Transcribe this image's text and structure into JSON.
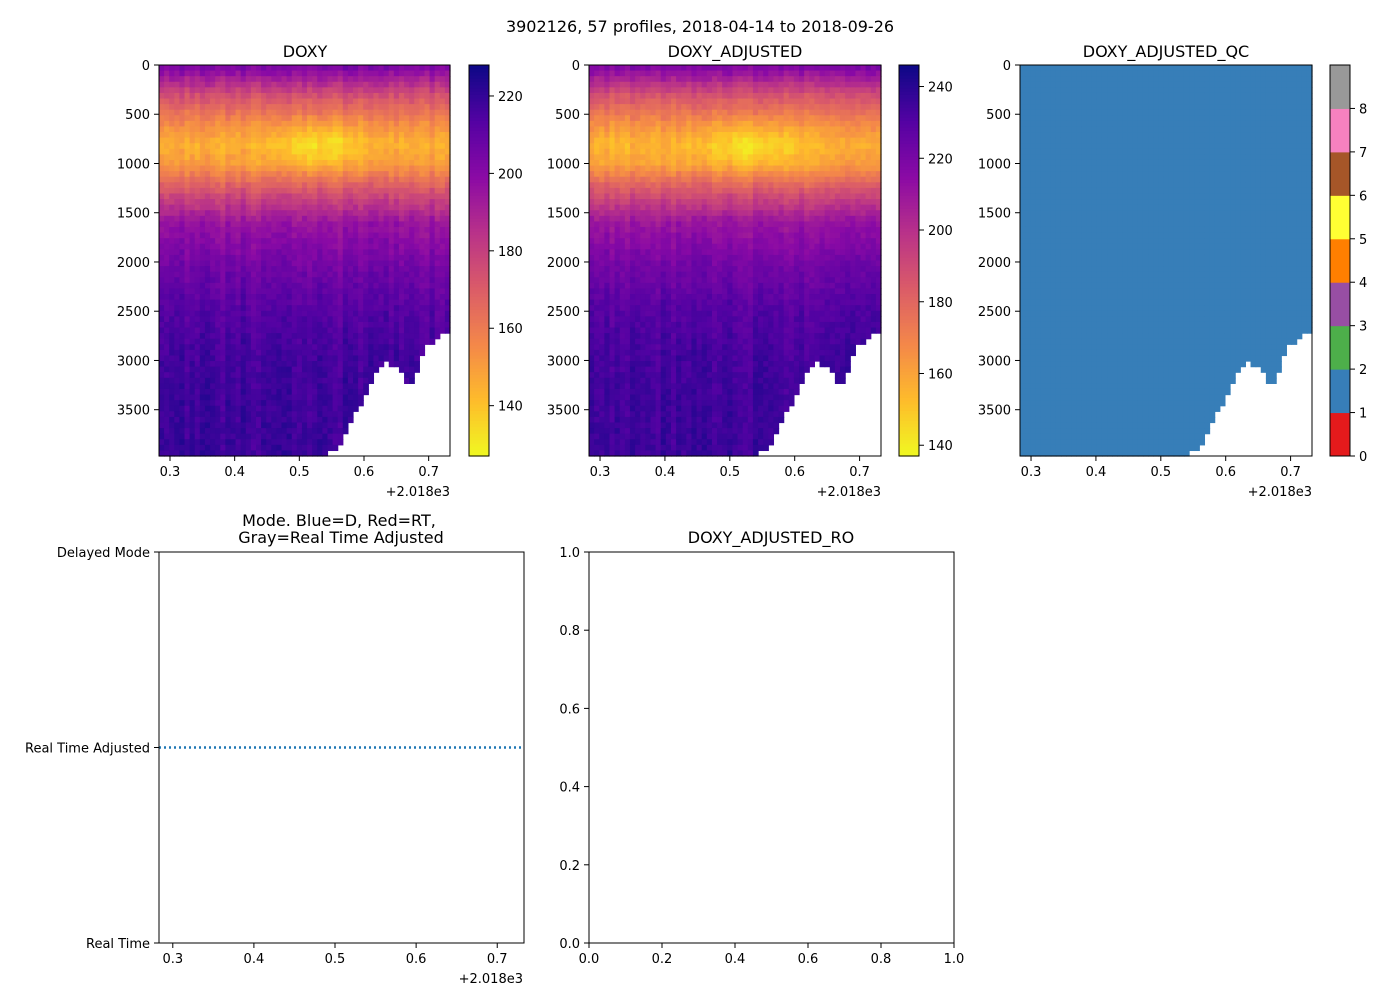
{
  "suptitle": "3902126, 57 profiles, 2018-04-14 to 2018-09-26",
  "chart_data": [
    {
      "type": "heatmap",
      "id": "doxy",
      "title": "DOXY",
      "x_range": [
        0.283,
        0.733
      ],
      "x_ticks": [
        0.3,
        0.4,
        0.5,
        0.6,
        0.7
      ],
      "x_tick_labels": [
        "0.3",
        "0.4",
        "0.5",
        "0.6",
        "0.7"
      ],
      "x_offset_label": "+2.018e3",
      "y_range": [
        0,
        3970
      ],
      "y_inverted": true,
      "y_ticks": [
        0,
        500,
        1000,
        1500,
        2000,
        2500,
        3000,
        3500
      ],
      "y_tick_labels": [
        "0",
        "500",
        "1000",
        "1500",
        "2000",
        "2500",
        "3000",
        "3500"
      ],
      "colormap": "plasma_r",
      "colorbar_range": [
        127,
        228
      ],
      "colorbar_ticks": [
        140,
        160,
        180,
        200,
        220
      ],
      "colorbar_tick_labels": [
        "140",
        "160",
        "180",
        "200",
        "220"
      ],
      "value_profile": {
        "depth": [
          0,
          300,
          600,
          800,
          1000,
          1300,
          1600,
          2000,
          2500,
          3000,
          3970
        ],
        "value": [
          205,
          175,
          155,
          145,
          150,
          175,
          195,
          205,
          213,
          217,
          219
        ]
      },
      "bottom_depth_profile": {
        "x": [
          0.283,
          0.53,
          0.56,
          0.58,
          0.6,
          0.62,
          0.635,
          0.65,
          0.66,
          0.67,
          0.68,
          0.695,
          0.71,
          0.733
        ],
        "max_depth": [
          3960,
          3960,
          3850,
          3600,
          3350,
          3100,
          3000,
          3050,
          3100,
          3250,
          3100,
          2850,
          2750,
          2650
        ]
      }
    },
    {
      "type": "heatmap",
      "id": "doxy_adjusted",
      "title": "DOXY_ADJUSTED",
      "x_range": [
        0.283,
        0.733
      ],
      "x_ticks": [
        0.3,
        0.4,
        0.5,
        0.6,
        0.7
      ],
      "x_tick_labels": [
        "0.3",
        "0.4",
        "0.5",
        "0.6",
        "0.7"
      ],
      "x_offset_label": "+2.018e3",
      "y_range": [
        0,
        3970
      ],
      "y_inverted": true,
      "y_ticks": [
        0,
        500,
        1000,
        1500,
        2000,
        2500,
        3000,
        3500
      ],
      "y_tick_labels": [
        "0",
        "500",
        "1000",
        "1500",
        "2000",
        "2500",
        "3000",
        "3500"
      ],
      "colormap": "plasma_r",
      "colorbar_range": [
        137,
        246
      ],
      "colorbar_ticks": [
        140,
        160,
        180,
        200,
        220,
        240
      ],
      "colorbar_tick_labels": [
        "140",
        "160",
        "180",
        "200",
        "220",
        "240"
      ],
      "value_profile": {
        "depth": [
          0,
          300,
          600,
          800,
          1000,
          1300,
          1600,
          2000,
          2500,
          3000,
          3970
        ],
        "value": [
          220,
          188,
          166,
          155,
          160,
          188,
          210,
          221,
          230,
          234,
          236
        ]
      },
      "bottom_depth_profile": {
        "x": [
          0.283,
          0.53,
          0.56,
          0.58,
          0.6,
          0.62,
          0.635,
          0.65,
          0.66,
          0.67,
          0.68,
          0.695,
          0.71,
          0.733
        ],
        "max_depth": [
          3960,
          3960,
          3850,
          3600,
          3350,
          3100,
          3000,
          3050,
          3100,
          3250,
          3100,
          2850,
          2750,
          2650
        ]
      }
    },
    {
      "type": "heatmap",
      "id": "doxy_adjusted_qc",
      "title": "DOXY_ADJUSTED_QC",
      "x_range": [
        0.283,
        0.733
      ],
      "x_ticks": [
        0.3,
        0.4,
        0.5,
        0.6,
        0.7
      ],
      "x_tick_labels": [
        "0.3",
        "0.4",
        "0.5",
        "0.6",
        "0.7"
      ],
      "x_offset_label": "+2.018e3",
      "y_range": [
        0,
        3970
      ],
      "y_inverted": true,
      "y_ticks": [
        0,
        500,
        1000,
        1500,
        2000,
        2500,
        3000,
        3500
      ],
      "y_tick_labels": [
        "0",
        "500",
        "1000",
        "1500",
        "2000",
        "2500",
        "3000",
        "3500"
      ],
      "qc_value": 1,
      "qc_colors": [
        "#e41a1c",
        "#377eb8",
        "#4daf4a",
        "#984ea3",
        "#ff7f00",
        "#ffff33",
        "#a65628",
        "#f781bf",
        "#999999"
      ],
      "colorbar_range": [
        0,
        9
      ],
      "colorbar_ticks": [
        0,
        1,
        2,
        3,
        4,
        5,
        6,
        7,
        8
      ],
      "colorbar_tick_labels": [
        "0",
        "1",
        "2",
        "3",
        "4",
        "5",
        "6",
        "7",
        "8"
      ],
      "bottom_depth_profile": {
        "x": [
          0.283,
          0.53,
          0.56,
          0.58,
          0.6,
          0.62,
          0.635,
          0.65,
          0.66,
          0.67,
          0.68,
          0.695,
          0.71,
          0.733
        ],
        "max_depth": [
          3960,
          3960,
          3850,
          3600,
          3350,
          3100,
          3000,
          3050,
          3100,
          3250,
          3100,
          2850,
          2750,
          2650
        ]
      }
    },
    {
      "type": "line",
      "id": "mode",
      "title_lines": [
        "Mode. Blue=D, Red=RT,",
        "Gray=Real Time Adjusted"
      ],
      "x_range": [
        0.283,
        0.733
      ],
      "x_ticks": [
        0.3,
        0.4,
        0.5,
        0.6,
        0.7
      ],
      "x_tick_labels": [
        "0.3",
        "0.4",
        "0.5",
        "0.6",
        "0.7"
      ],
      "x_offset_label": "+2.018e3",
      "y_range": [
        0,
        2
      ],
      "y_ticks": [
        0,
        1,
        2
      ],
      "y_tick_labels": [
        "Real Time",
        "Real Time Adjusted",
        "Delayed Mode"
      ],
      "series": [
        {
          "name": "mode",
          "style": "dotted",
          "color": "#1f77b4",
          "x": [
            0.283,
            0.733
          ],
          "y": [
            1,
            1
          ]
        }
      ]
    },
    {
      "type": "line",
      "id": "doxy_adjusted_ro",
      "title": "DOXY_ADJUSTED_RO",
      "x_range": [
        0,
        1
      ],
      "x_ticks": [
        0,
        0.2,
        0.4,
        0.6,
        0.8,
        1
      ],
      "x_tick_labels": [
        "0.0",
        "0.2",
        "0.4",
        "0.6",
        "0.8",
        "1.0"
      ],
      "y_range": [
        0,
        1
      ],
      "y_ticks": [
        0,
        0.2,
        0.4,
        0.6,
        0.8,
        1
      ],
      "y_tick_labels": [
        "0.0",
        "0.2",
        "0.4",
        "0.6",
        "0.8",
        "1.0"
      ],
      "series": []
    }
  ]
}
